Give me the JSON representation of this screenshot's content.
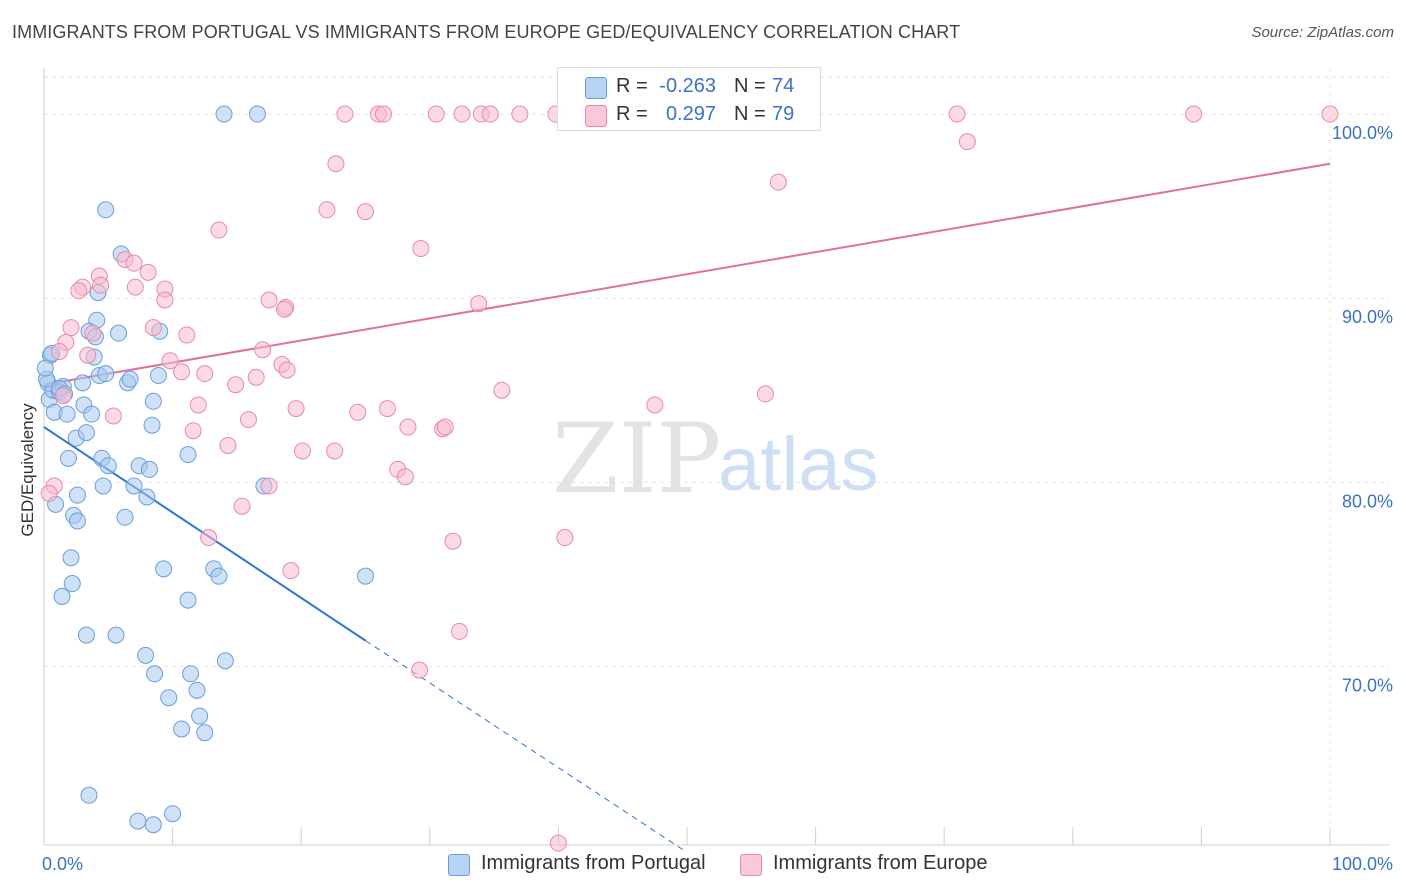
{
  "title": "IMMIGRANTS FROM PORTUGAL VS IMMIGRANTS FROM EUROPE GED/EQUIVALENCY CORRELATION CHART",
  "source": "Source: ZipAtlas.com",
  "watermark": {
    "zip": "ZIP",
    "atlas": "atlas"
  },
  "colors": {
    "portugal_fill": "#a8c8f0",
    "portugal_stroke": "#6a9fd8",
    "portugal_line": "#2f74d0",
    "europe_fill": "#f8bcd0",
    "europe_stroke": "#e88aa8",
    "europe_line": "#e0709a",
    "axis_text": "#3c72c4",
    "grid": "#e6e6e6"
  },
  "stats": [
    {
      "r_label": "R =",
      "r_value": "-0.263",
      "n_label": "N =",
      "n_value": "74"
    },
    {
      "r_label": "R =",
      "r_value": "0.297",
      "n_label": "N =",
      "n_value": "79"
    }
  ],
  "legend": [
    "Immigrants from Portugal",
    "Immigrants from Europe"
  ],
  "chart_data": {
    "type": "scatter",
    "title": "IMMIGRANTS FROM PORTUGAL VS IMMIGRANTS FROM EUROPE GED/EQUIVALENCY CORRELATION CHART",
    "xlabel": "",
    "ylabel": "GED/Equivalency",
    "xlim": [
      0,
      100
    ],
    "ylim": [
      60.3,
      102.5
    ],
    "x_tick_labels": [
      "0.0%",
      "100.0%"
    ],
    "y_ticks": [
      70,
      80,
      90,
      100
    ],
    "y_tick_labels": [
      "70.0%",
      "80.0%",
      "90.0%",
      "100.0%"
    ],
    "grid": true,
    "legend_position": "bottom",
    "series": [
      {
        "name": "Immigrants from Portugal",
        "points": [
          [
            0.5,
            86.9
          ],
          [
            0.3,
            85.4
          ],
          [
            0.4,
            84.5
          ],
          [
            0.8,
            83.8
          ],
          [
            0.7,
            85.0
          ],
          [
            1.5,
            85.2
          ],
          [
            1.2,
            84.9
          ],
          [
            1.8,
            83.7
          ],
          [
            2.5,
            82.4
          ],
          [
            3.3,
            82.7
          ],
          [
            3.1,
            84.2
          ],
          [
            3.7,
            83.7
          ],
          [
            4.3,
            85.8
          ],
          [
            4.8,
            85.9
          ],
          [
            6.5,
            85.4
          ],
          [
            6.7,
            85.6
          ],
          [
            8.5,
            84.4
          ],
          [
            8.9,
            85.8
          ],
          [
            4.1,
            88.8
          ],
          [
            3.5,
            88.2
          ],
          [
            3.9,
            86.8
          ],
          [
            4.0,
            87.9
          ],
          [
            5.8,
            88.1
          ],
          [
            9.0,
            88.2
          ],
          [
            6.0,
            92.4
          ],
          [
            4.2,
            90.3
          ],
          [
            4.8,
            94.8
          ],
          [
            1.9,
            81.3
          ],
          [
            4.5,
            81.3
          ],
          [
            5.0,
            80.9
          ],
          [
            7.4,
            80.9
          ],
          [
            8.2,
            80.7
          ],
          [
            8.4,
            83.1
          ],
          [
            11.2,
            81.5
          ],
          [
            2.6,
            79.3
          ],
          [
            4.6,
            79.8
          ],
          [
            7.0,
            79.8
          ],
          [
            8.0,
            79.2
          ],
          [
            0.9,
            78.8
          ],
          [
            2.3,
            78.2
          ],
          [
            2.6,
            77.9
          ],
          [
            6.3,
            78.1
          ],
          [
            17.1,
            79.8
          ],
          [
            2.1,
            75.9
          ],
          [
            2.2,
            74.5
          ],
          [
            1.4,
            73.8
          ],
          [
            9.3,
            75.3
          ],
          [
            13.2,
            75.3
          ],
          [
            13.6,
            74.9
          ],
          [
            11.2,
            73.6
          ],
          [
            25.0,
            74.9
          ],
          [
            3.3,
            71.7
          ],
          [
            5.6,
            71.7
          ],
          [
            7.9,
            70.6
          ],
          [
            8.6,
            69.6
          ],
          [
            11.4,
            69.6
          ],
          [
            9.7,
            68.3
          ],
          [
            11.9,
            68.7
          ],
          [
            14.1,
            70.3
          ],
          [
            12.1,
            67.3
          ],
          [
            10.7,
            66.6
          ],
          [
            12.5,
            66.4
          ],
          [
            3.5,
            63.0
          ],
          [
            7.3,
            61.6
          ],
          [
            8.5,
            61.4
          ],
          [
            10.0,
            62.0
          ],
          [
            14.0,
            100.0
          ],
          [
            16.6,
            100.0
          ],
          [
            0.6,
            87.0
          ],
          [
            1.2,
            85.1
          ],
          [
            0.2,
            85.6
          ],
          [
            0.1,
            86.2
          ],
          [
            1.6,
            84.8
          ],
          [
            3.0,
            85.4
          ]
        ]
      },
      {
        "name": "Immigrants from Europe",
        "points": [
          [
            23.4,
            100.0
          ],
          [
            26.0,
            100.0
          ],
          [
            26.4,
            100.0
          ],
          [
            30.5,
            100.0
          ],
          [
            32.5,
            100.0
          ],
          [
            34.0,
            100.0
          ],
          [
            34.7,
            100.0
          ],
          [
            37.0,
            100.0
          ],
          [
            39.8,
            100.0
          ],
          [
            55.0,
            100.0
          ],
          [
            71.0,
            100.0
          ],
          [
            89.4,
            100.0
          ],
          [
            100.0,
            100.0
          ],
          [
            71.8,
            98.5
          ],
          [
            57.1,
            96.3
          ],
          [
            22.7,
            97.3
          ],
          [
            22.0,
            94.8
          ],
          [
            25.0,
            94.7
          ],
          [
            13.6,
            93.7
          ],
          [
            29.3,
            92.7
          ],
          [
            6.3,
            92.1
          ],
          [
            7.0,
            91.9
          ],
          [
            4.3,
            91.2
          ],
          [
            8.1,
            91.4
          ],
          [
            3.0,
            90.6
          ],
          [
            4.4,
            90.7
          ],
          [
            7.1,
            90.6
          ],
          [
            9.4,
            90.5
          ],
          [
            2.7,
            90.4
          ],
          [
            9.4,
            89.9
          ],
          [
            17.5,
            89.9
          ],
          [
            18.8,
            89.5
          ],
          [
            33.8,
            89.7
          ],
          [
            18.7,
            89.4
          ],
          [
            2.1,
            88.4
          ],
          [
            3.8,
            88.1
          ],
          [
            8.5,
            88.4
          ],
          [
            11.1,
            88.0
          ],
          [
            1.7,
            87.6
          ],
          [
            1.2,
            87.1
          ],
          [
            17.0,
            87.2
          ],
          [
            9.8,
            86.6
          ],
          [
            18.5,
            86.4
          ],
          [
            10.7,
            86.0
          ],
          [
            12.5,
            85.9
          ],
          [
            16.5,
            85.7
          ],
          [
            18.9,
            86.1
          ],
          [
            14.9,
            85.3
          ],
          [
            35.6,
            85.0
          ],
          [
            47.5,
            84.2
          ],
          [
            56.1,
            84.8
          ],
          [
            1.5,
            84.7
          ],
          [
            12.0,
            84.2
          ],
          [
            19.6,
            84.0
          ],
          [
            24.4,
            83.8
          ],
          [
            26.7,
            84.0
          ],
          [
            5.4,
            83.6
          ],
          [
            15.9,
            83.4
          ],
          [
            28.3,
            83.0
          ],
          [
            31.0,
            82.9
          ],
          [
            31.2,
            83.0
          ],
          [
            11.6,
            82.8
          ],
          [
            14.3,
            82.0
          ],
          [
            20.1,
            81.7
          ],
          [
            22.6,
            81.7
          ],
          [
            27.5,
            80.7
          ],
          [
            28.1,
            80.3
          ],
          [
            17.5,
            79.8
          ],
          [
            0.8,
            79.8
          ],
          [
            0.4,
            79.4
          ],
          [
            15.4,
            78.7
          ],
          [
            12.8,
            77.0
          ],
          [
            31.8,
            76.8
          ],
          [
            40.5,
            77.0
          ],
          [
            19.2,
            75.2
          ],
          [
            32.3,
            71.9
          ],
          [
            29.2,
            69.8
          ],
          [
            40.0,
            60.4
          ],
          [
            3.4,
            86.9
          ]
        ]
      }
    ],
    "trend_lines": [
      {
        "series": "Immigrants from Portugal",
        "x": [
          0,
          25.0
        ],
        "y": [
          83.0,
          71.4
        ],
        "dashed_extension_x": [
          25.0,
          50.0
        ],
        "dashed_extension_y": [
          71.4,
          59.9
        ]
      },
      {
        "series": "Immigrants from Europe",
        "x": [
          0,
          100
        ],
        "y": [
          85.3,
          97.3
        ]
      }
    ]
  }
}
